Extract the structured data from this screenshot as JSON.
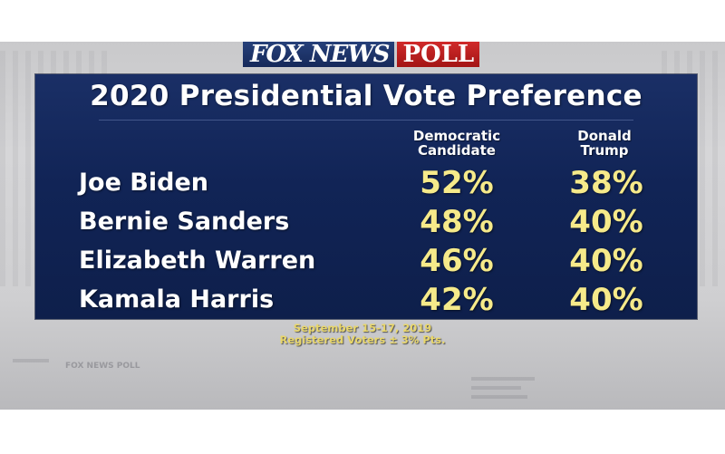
{
  "brand": {
    "fox_news": "FOX NEWS",
    "poll": "POLL"
  },
  "background_label": "FOX NEWS POLL",
  "colors": {
    "panel": "#112456",
    "value_yellow": "#f6ea8a",
    "footnote_yellow": "#e8d66a",
    "poll_red": "#c02020"
  },
  "chart_data": {
    "type": "table",
    "title": "2020 Presidential Vote Preference",
    "columns": [
      "Democratic Candidate",
      "Donald Trump"
    ],
    "column_lines": [
      [
        "Democratic",
        "Candidate"
      ],
      [
        "Donald",
        "Trump"
      ]
    ],
    "rows": [
      {
        "name": "Joe Biden",
        "democratic_candidate": "52%",
        "donald_trump": "38%"
      },
      {
        "name": "Bernie Sanders",
        "democratic_candidate": "48%",
        "donald_trump": "40%"
      },
      {
        "name": "Elizabeth Warren",
        "democratic_candidate": "46%",
        "donald_trump": "40%"
      },
      {
        "name": "Kamala Harris",
        "democratic_candidate": "42%",
        "donald_trump": "40%"
      }
    ],
    "footnotes": [
      "September 15-17, 2019",
      "Registered Voters ± 3% Pts."
    ]
  }
}
